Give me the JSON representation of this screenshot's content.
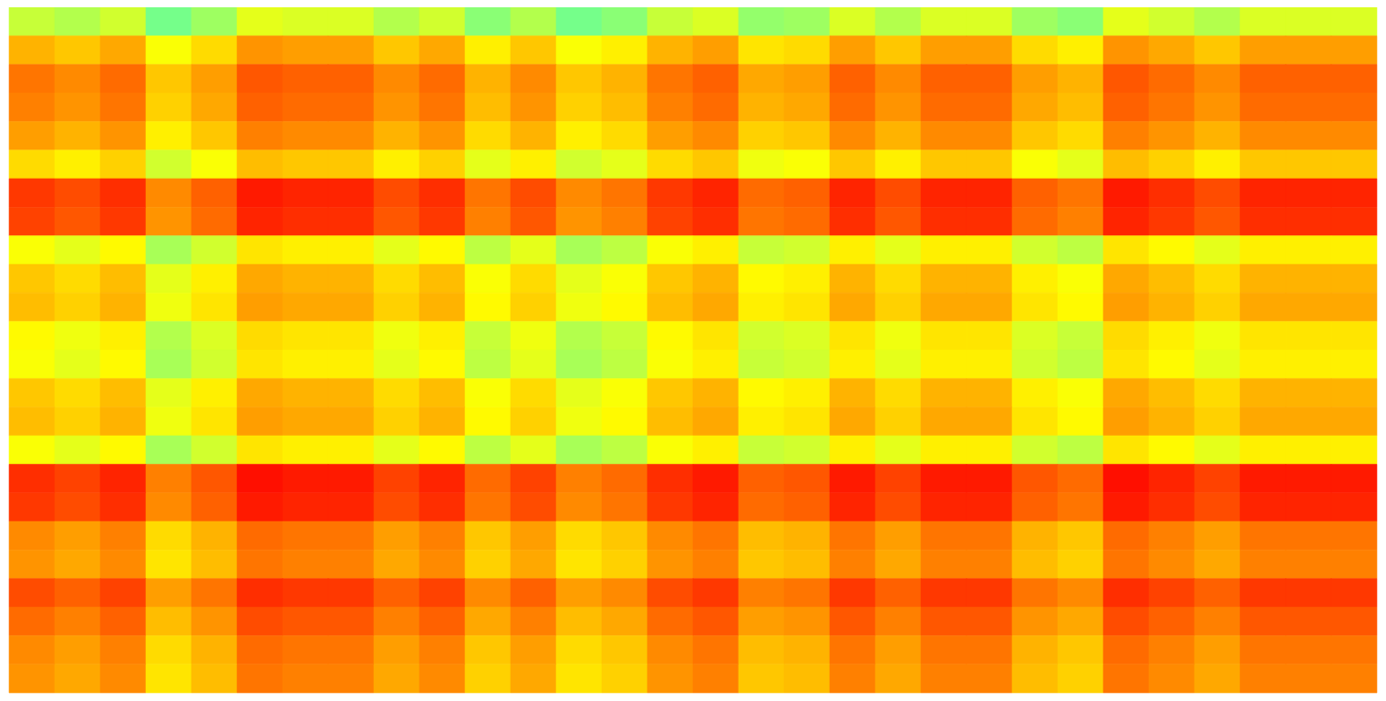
{
  "chart_data": {
    "type": "heatmap",
    "tick_labels": false,
    "zlim": [
      0,
      1
    ],
    "cells": [
      [
        0.57,
        0.55,
        0.58,
        0.49,
        0.53,
        0.6,
        0.59,
        0.59,
        0.55,
        0.58,
        0.51,
        0.55,
        0.49,
        0.51,
        0.57,
        0.59,
        0.52,
        0.53,
        0.59,
        0.55,
        0.59,
        0.59,
        0.53,
        0.51,
        0.6,
        0.58,
        0.55,
        0.59,
        0.59,
        0.59
      ],
      [
        0.7,
        0.68,
        0.71,
        0.62,
        0.66,
        0.73,
        0.72,
        0.72,
        0.68,
        0.71,
        0.64,
        0.68,
        0.62,
        0.64,
        0.7,
        0.72,
        0.65,
        0.66,
        0.72,
        0.68,
        0.72,
        0.72,
        0.66,
        0.64,
        0.73,
        0.71,
        0.68,
        0.72,
        0.72,
        0.72
      ],
      [
        0.76,
        0.74,
        0.77,
        0.68,
        0.72,
        0.79,
        0.78,
        0.78,
        0.74,
        0.77,
        0.7,
        0.74,
        0.68,
        0.7,
        0.76,
        0.78,
        0.71,
        0.72,
        0.78,
        0.74,
        0.78,
        0.78,
        0.72,
        0.7,
        0.79,
        0.77,
        0.74,
        0.78,
        0.78,
        0.78
      ],
      [
        0.75,
        0.73,
        0.76,
        0.67,
        0.71,
        0.78,
        0.77,
        0.77,
        0.73,
        0.76,
        0.69,
        0.73,
        0.67,
        0.69,
        0.75,
        0.77,
        0.7,
        0.71,
        0.77,
        0.73,
        0.77,
        0.77,
        0.71,
        0.69,
        0.78,
        0.76,
        0.73,
        0.77,
        0.77,
        0.77
      ],
      [
        0.72,
        0.7,
        0.73,
        0.64,
        0.68,
        0.75,
        0.74,
        0.74,
        0.7,
        0.73,
        0.66,
        0.7,
        0.64,
        0.66,
        0.72,
        0.74,
        0.67,
        0.68,
        0.74,
        0.7,
        0.74,
        0.74,
        0.68,
        0.66,
        0.75,
        0.73,
        0.7,
        0.74,
        0.74,
        0.74
      ],
      [
        0.66,
        0.64,
        0.67,
        0.58,
        0.62,
        0.69,
        0.68,
        0.68,
        0.64,
        0.67,
        0.6,
        0.64,
        0.58,
        0.6,
        0.66,
        0.68,
        0.61,
        0.62,
        0.68,
        0.64,
        0.68,
        0.68,
        0.62,
        0.6,
        0.69,
        0.67,
        0.64,
        0.68,
        0.68,
        0.68
      ],
      [
        0.82,
        0.8,
        0.83,
        0.74,
        0.78,
        0.85,
        0.84,
        0.84,
        0.8,
        0.83,
        0.76,
        0.8,
        0.74,
        0.76,
        0.82,
        0.84,
        0.77,
        0.78,
        0.84,
        0.8,
        0.84,
        0.84,
        0.78,
        0.76,
        0.85,
        0.83,
        0.8,
        0.84,
        0.84,
        0.84
      ],
      [
        0.81,
        0.79,
        0.82,
        0.73,
        0.77,
        0.84,
        0.83,
        0.83,
        0.79,
        0.82,
        0.75,
        0.79,
        0.73,
        0.75,
        0.81,
        0.83,
        0.76,
        0.77,
        0.83,
        0.79,
        0.83,
        0.83,
        0.77,
        0.75,
        0.84,
        0.82,
        0.79,
        0.83,
        0.83,
        0.83
      ],
      [
        0.62,
        0.6,
        0.63,
        0.54,
        0.58,
        0.65,
        0.64,
        0.64,
        0.6,
        0.63,
        0.56,
        0.6,
        0.54,
        0.56,
        0.62,
        0.64,
        0.57,
        0.58,
        0.64,
        0.6,
        0.64,
        0.64,
        0.58,
        0.56,
        0.65,
        0.63,
        0.6,
        0.64,
        0.64,
        0.64
      ],
      [
        0.68,
        0.66,
        0.69,
        0.6,
        0.64,
        0.71,
        0.7,
        0.7,
        0.66,
        0.69,
        0.62,
        0.66,
        0.6,
        0.62,
        0.68,
        0.7,
        0.63,
        0.64,
        0.7,
        0.66,
        0.7,
        0.7,
        0.64,
        0.62,
        0.71,
        0.69,
        0.66,
        0.7,
        0.7,
        0.7
      ],
      [
        0.69,
        0.67,
        0.7,
        0.61,
        0.65,
        0.72,
        0.71,
        0.71,
        0.67,
        0.7,
        0.63,
        0.67,
        0.61,
        0.63,
        0.69,
        0.71,
        0.64,
        0.65,
        0.71,
        0.67,
        0.71,
        0.71,
        0.65,
        0.63,
        0.72,
        0.7,
        0.67,
        0.71,
        0.71,
        0.71
      ],
      [
        0.63,
        0.61,
        0.64,
        0.55,
        0.59,
        0.66,
        0.65,
        0.65,
        0.61,
        0.64,
        0.57,
        0.61,
        0.55,
        0.57,
        0.63,
        0.65,
        0.58,
        0.59,
        0.65,
        0.61,
        0.65,
        0.65,
        0.59,
        0.57,
        0.66,
        0.64,
        0.61,
        0.65,
        0.65,
        0.65
      ],
      [
        0.62,
        0.6,
        0.63,
        0.54,
        0.58,
        0.65,
        0.64,
        0.64,
        0.6,
        0.63,
        0.56,
        0.6,
        0.54,
        0.56,
        0.62,
        0.64,
        0.57,
        0.58,
        0.64,
        0.6,
        0.64,
        0.64,
        0.58,
        0.56,
        0.65,
        0.63,
        0.6,
        0.64,
        0.64,
        0.64
      ],
      [
        0.68,
        0.66,
        0.69,
        0.6,
        0.64,
        0.71,
        0.7,
        0.7,
        0.66,
        0.69,
        0.62,
        0.66,
        0.6,
        0.62,
        0.68,
        0.7,
        0.63,
        0.64,
        0.7,
        0.66,
        0.7,
        0.7,
        0.64,
        0.62,
        0.71,
        0.69,
        0.66,
        0.7,
        0.7,
        0.7
      ],
      [
        0.69,
        0.67,
        0.7,
        0.61,
        0.65,
        0.72,
        0.71,
        0.71,
        0.67,
        0.7,
        0.63,
        0.67,
        0.61,
        0.63,
        0.69,
        0.71,
        0.64,
        0.65,
        0.71,
        0.67,
        0.71,
        0.71,
        0.65,
        0.63,
        0.72,
        0.7,
        0.67,
        0.71,
        0.71,
        0.71
      ],
      [
        0.62,
        0.6,
        0.63,
        0.54,
        0.58,
        0.65,
        0.64,
        0.64,
        0.6,
        0.63,
        0.56,
        0.6,
        0.54,
        0.56,
        0.62,
        0.64,
        0.57,
        0.58,
        0.64,
        0.6,
        0.64,
        0.64,
        0.58,
        0.56,
        0.65,
        0.63,
        0.6,
        0.64,
        0.64,
        0.64
      ],
      [
        0.83,
        0.81,
        0.84,
        0.75,
        0.79,
        0.86,
        0.85,
        0.85,
        0.81,
        0.84,
        0.77,
        0.81,
        0.75,
        0.77,
        0.83,
        0.85,
        0.78,
        0.79,
        0.85,
        0.81,
        0.85,
        0.85,
        0.79,
        0.77,
        0.86,
        0.84,
        0.81,
        0.85,
        0.85,
        0.85
      ],
      [
        0.82,
        0.8,
        0.83,
        0.74,
        0.78,
        0.85,
        0.84,
        0.84,
        0.8,
        0.83,
        0.76,
        0.8,
        0.74,
        0.76,
        0.82,
        0.84,
        0.77,
        0.78,
        0.84,
        0.8,
        0.84,
        0.84,
        0.78,
        0.76,
        0.85,
        0.83,
        0.8,
        0.84,
        0.84,
        0.84
      ],
      [
        0.74,
        0.72,
        0.75,
        0.66,
        0.7,
        0.77,
        0.76,
        0.76,
        0.72,
        0.75,
        0.68,
        0.72,
        0.66,
        0.68,
        0.74,
        0.76,
        0.69,
        0.7,
        0.76,
        0.72,
        0.76,
        0.76,
        0.7,
        0.68,
        0.77,
        0.75,
        0.72,
        0.76,
        0.76,
        0.76
      ],
      [
        0.73,
        0.71,
        0.74,
        0.65,
        0.69,
        0.76,
        0.75,
        0.75,
        0.71,
        0.74,
        0.67,
        0.71,
        0.65,
        0.67,
        0.73,
        0.75,
        0.68,
        0.69,
        0.75,
        0.71,
        0.75,
        0.75,
        0.69,
        0.67,
        0.76,
        0.74,
        0.71,
        0.75,
        0.75,
        0.75
      ],
      [
        0.8,
        0.78,
        0.81,
        0.72,
        0.76,
        0.83,
        0.82,
        0.82,
        0.78,
        0.81,
        0.74,
        0.78,
        0.72,
        0.74,
        0.8,
        0.82,
        0.75,
        0.76,
        0.82,
        0.78,
        0.82,
        0.82,
        0.76,
        0.74,
        0.83,
        0.81,
        0.78,
        0.82,
        0.82,
        0.82
      ],
      [
        0.77,
        0.75,
        0.78,
        0.69,
        0.73,
        0.8,
        0.79,
        0.79,
        0.75,
        0.78,
        0.71,
        0.75,
        0.69,
        0.71,
        0.77,
        0.79,
        0.72,
        0.73,
        0.79,
        0.75,
        0.79,
        0.79,
        0.73,
        0.71,
        0.8,
        0.78,
        0.75,
        0.79,
        0.79,
        0.79
      ],
      [
        0.74,
        0.72,
        0.75,
        0.66,
        0.7,
        0.77,
        0.76,
        0.76,
        0.72,
        0.75,
        0.68,
        0.72,
        0.66,
        0.68,
        0.74,
        0.76,
        0.69,
        0.7,
        0.76,
        0.72,
        0.76,
        0.76,
        0.7,
        0.68,
        0.77,
        0.75,
        0.72,
        0.76,
        0.76,
        0.76
      ],
      [
        0.73,
        0.71,
        0.74,
        0.65,
        0.69,
        0.76,
        0.75,
        0.75,
        0.71,
        0.74,
        0.67,
        0.71,
        0.65,
        0.67,
        0.73,
        0.75,
        0.68,
        0.69,
        0.75,
        0.71,
        0.75,
        0.75,
        0.69,
        0.67,
        0.76,
        0.74,
        0.71,
        0.75,
        0.75,
        0.75
      ]
    ]
  }
}
